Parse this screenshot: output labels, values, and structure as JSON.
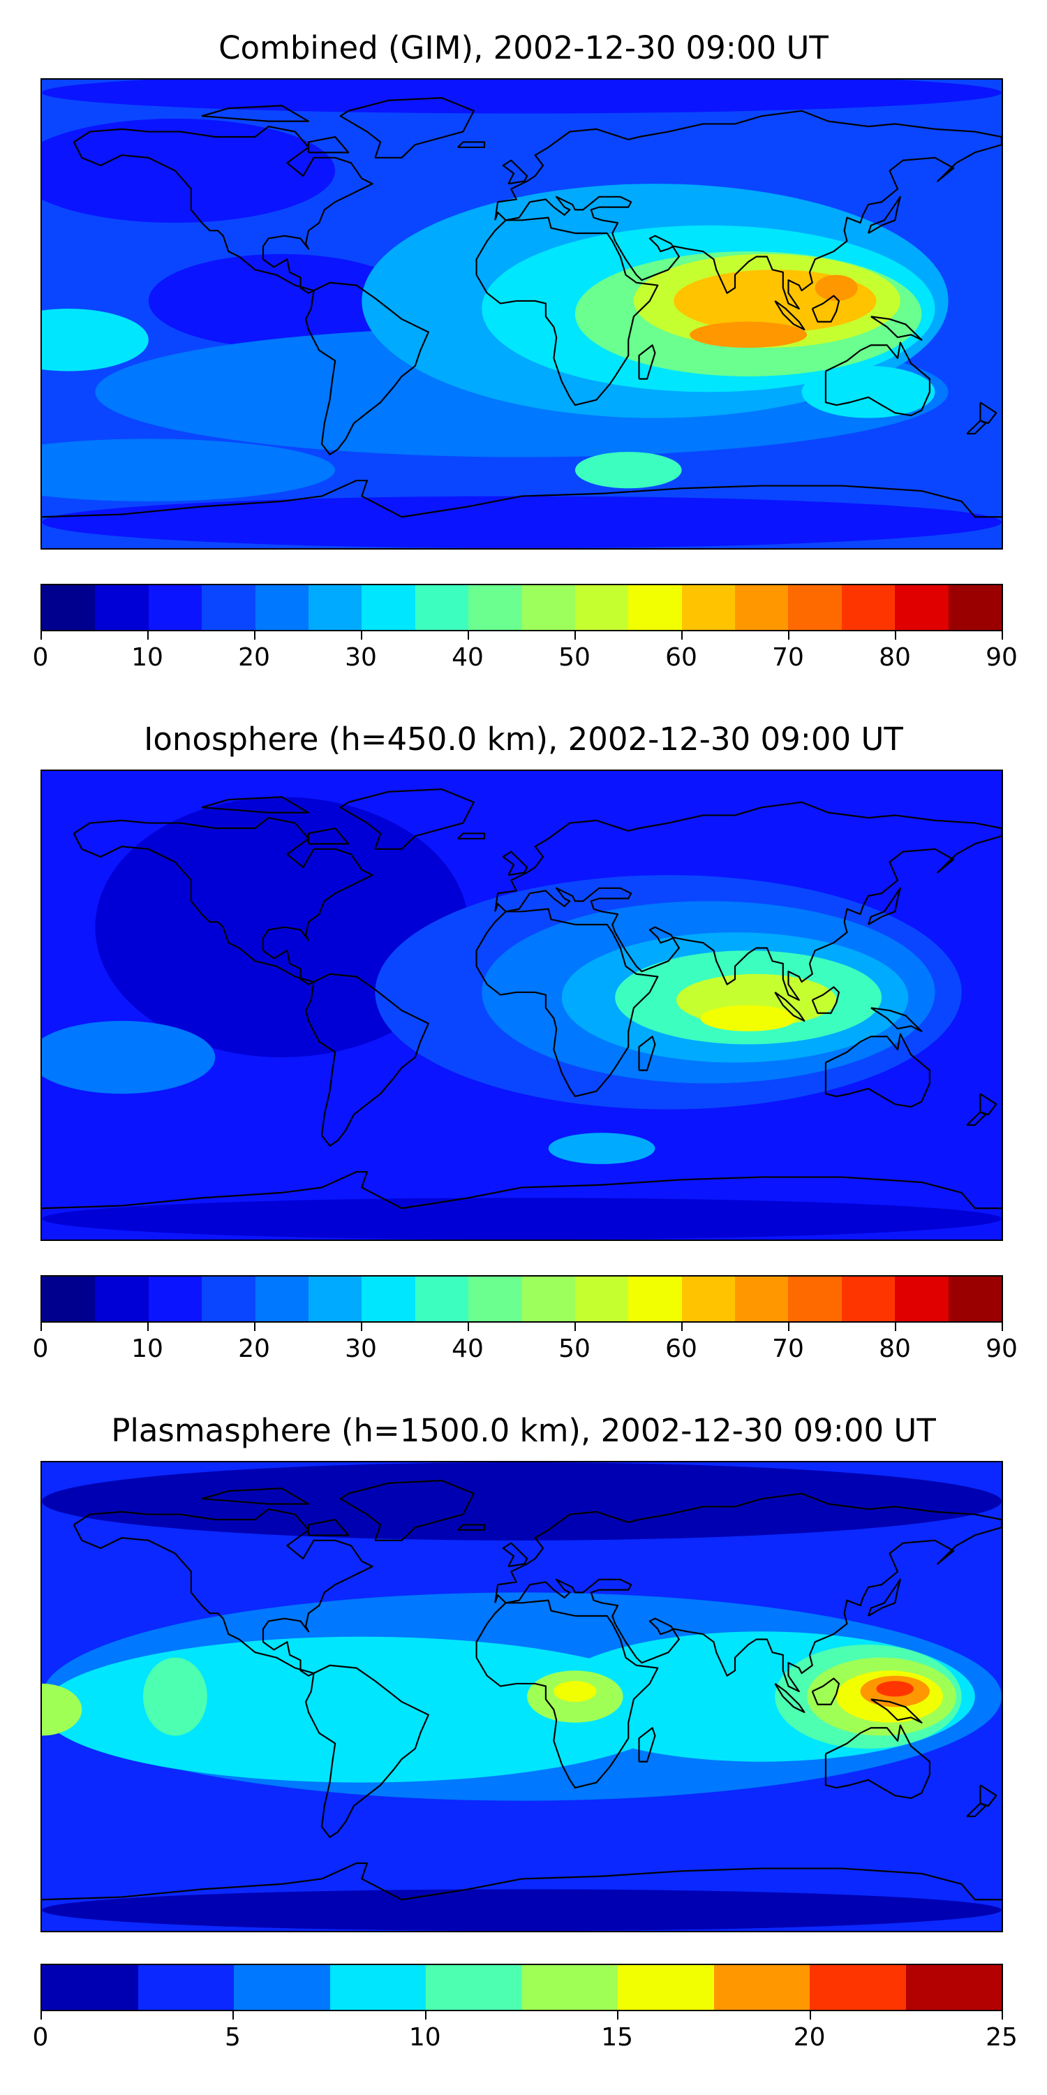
{
  "panels": [
    {
      "title": "Combined (GIM), 2002-12-30 09:00 UT",
      "colorbar": {
        "min": 0,
        "max": 90,
        "step": 5,
        "colors": [
          "#00008f",
          "#0000d6",
          "#0a14ff",
          "#0a46ff",
          "#0078ff",
          "#00aaff",
          "#00e6ff",
          "#3cffbf",
          "#6aff8e",
          "#9dff5b",
          "#c6ff30",
          "#f2ff00",
          "#ffc300",
          "#ff9700",
          "#ff6a00",
          "#ff3500",
          "#e00000",
          "#9b0000"
        ],
        "tick_labels": [
          "0",
          "10",
          "20",
          "30",
          "40",
          "50",
          "60",
          "70",
          "80",
          "90"
        ]
      },
      "field": {
        "base_color": "#0a46ff",
        "regions": [
          {
            "lon": -130,
            "lat": 55,
            "rx": 60,
            "ry": 20,
            "color": "#0a14ff"
          },
          {
            "lon": -90,
            "lat": 5,
            "rx": 50,
            "ry": 18,
            "color": "#0a14ff"
          },
          {
            "lon": 0,
            "lat": -30,
            "rx": 160,
            "ry": 25,
            "color": "#0078ff"
          },
          {
            "lon": 50,
            "lat": 5,
            "rx": 110,
            "ry": 45,
            "color": "#00aaff"
          },
          {
            "lon": 70,
            "lat": 2,
            "rx": 85,
            "ry": 32,
            "color": "#00e6ff"
          },
          {
            "lon": 85,
            "lat": 0,
            "rx": 65,
            "ry": 24,
            "color": "#6aff8e"
          },
          {
            "lon": 92,
            "lat": 5,
            "rx": 50,
            "ry": 18,
            "color": "#c6ff30"
          },
          {
            "lon": 95,
            "lat": 5,
            "rx": 38,
            "ry": 12,
            "color": "#ffc300"
          },
          {
            "lon": 85,
            "lat": -8,
            "rx": 22,
            "ry": 5,
            "color": "#ff9700"
          },
          {
            "lon": 118,
            "lat": 10,
            "rx": 8,
            "ry": 5,
            "color": "#ff9700"
          },
          {
            "lon": -170,
            "lat": -10,
            "rx": 30,
            "ry": 12,
            "color": "#00e6ff"
          },
          {
            "lon": 40,
            "lat": -60,
            "rx": 20,
            "ry": 7,
            "color": "#3cffbf"
          },
          {
            "lon": 130,
            "lat": -30,
            "rx": 25,
            "ry": 10,
            "color": "#00e6ff"
          },
          {
            "lon": -140,
            "lat": -60,
            "rx": 70,
            "ry": 12,
            "color": "#0078ff"
          },
          {
            "lon": 0,
            "lat": -80,
            "rx": 180,
            "ry": 10,
            "color": "#0a14ff"
          },
          {
            "lon": 0,
            "lat": 85,
            "rx": 180,
            "ry": 8,
            "color": "#0a14ff"
          }
        ]
      }
    },
    {
      "title": "Ionosphere  (h=450.0 km), 2002-12-30 09:00 UT",
      "colorbar": {
        "min": 0,
        "max": 90,
        "step": 5,
        "colors": [
          "#00008f",
          "#0000d6",
          "#0a14ff",
          "#0a46ff",
          "#0078ff",
          "#00aaff",
          "#00e6ff",
          "#3cffbf",
          "#6aff8e",
          "#9dff5b",
          "#c6ff30",
          "#f2ff00",
          "#ffc300",
          "#ff9700",
          "#ff6a00",
          "#ff3500",
          "#e00000",
          "#9b0000"
        ],
        "tick_labels": [
          "0",
          "10",
          "20",
          "30",
          "40",
          "50",
          "60",
          "70",
          "80",
          "90"
        ]
      },
      "field": {
        "base_color": "#0a14ff",
        "regions": [
          {
            "lon": -90,
            "lat": 30,
            "rx": 70,
            "ry": 50,
            "color": "#0000d6"
          },
          {
            "lon": 55,
            "lat": 5,
            "rx": 110,
            "ry": 45,
            "color": "#0a46ff"
          },
          {
            "lon": 70,
            "lat": 5,
            "rx": 85,
            "ry": 35,
            "color": "#0078ff"
          },
          {
            "lon": 80,
            "lat": 3,
            "rx": 65,
            "ry": 25,
            "color": "#00aaff"
          },
          {
            "lon": 85,
            "lat": 3,
            "rx": 50,
            "ry": 18,
            "color": "#3cffbf"
          },
          {
            "lon": 88,
            "lat": 2,
            "rx": 30,
            "ry": 10,
            "color": "#c6ff30"
          },
          {
            "lon": 85,
            "lat": -5,
            "rx": 18,
            "ry": 5,
            "color": "#f2ff00"
          },
          {
            "lon": -150,
            "lat": -20,
            "rx": 35,
            "ry": 14,
            "color": "#0078ff"
          },
          {
            "lon": 30,
            "lat": -55,
            "rx": 20,
            "ry": 6,
            "color": "#00aaff"
          },
          {
            "lon": 0,
            "lat": -82,
            "rx": 180,
            "ry": 8,
            "color": "#0000d6"
          }
        ]
      }
    },
    {
      "title": "Plasmasphere (h=1500.0 km), 2002-12-30 09:00 UT",
      "colorbar": {
        "min": 0,
        "max": 25,
        "step": 2.5,
        "colors": [
          "#0000b3",
          "#0a28ff",
          "#0078ff",
          "#00e6ff",
          "#4dffb0",
          "#a0ff55",
          "#f2ff00",
          "#ff9700",
          "#ff3500",
          "#b30000"
        ],
        "tick_labels": [
          "0",
          "5",
          "10",
          "15",
          "20",
          "25"
        ]
      },
      "field": {
        "base_color": "#0a28ff",
        "regions": [
          {
            "lon": 0,
            "lat": 75,
            "rx": 180,
            "ry": 15,
            "color": "#0000b3"
          },
          {
            "lon": 0,
            "lat": -82,
            "rx": 180,
            "ry": 8,
            "color": "#0000b3"
          },
          {
            "lon": 0,
            "lat": 0,
            "rx": 180,
            "ry": 40,
            "color": "#0078ff"
          },
          {
            "lon": -60,
            "lat": -5,
            "rx": 120,
            "ry": 28,
            "color": "#00e6ff"
          },
          {
            "lon": 90,
            "lat": 0,
            "rx": 80,
            "ry": 25,
            "color": "#00e6ff"
          },
          {
            "lon": -180,
            "lat": -5,
            "rx": 15,
            "ry": 10,
            "color": "#a0ff55"
          },
          {
            "lon": -130,
            "lat": 0,
            "rx": 12,
            "ry": 15,
            "color": "#4dffb0"
          },
          {
            "lon": 20,
            "lat": 0,
            "rx": 18,
            "ry": 10,
            "color": "#a0ff55"
          },
          {
            "lon": 20,
            "lat": 2,
            "rx": 8,
            "ry": 4,
            "color": "#f2ff00"
          },
          {
            "lon": 130,
            "lat": 0,
            "rx": 35,
            "ry": 20,
            "color": "#4dffb0"
          },
          {
            "lon": 135,
            "lat": 0,
            "rx": 28,
            "ry": 15,
            "color": "#a0ff55"
          },
          {
            "lon": 138,
            "lat": 0,
            "rx": 20,
            "ry": 10,
            "color": "#f2ff00"
          },
          {
            "lon": 140,
            "lat": 2,
            "rx": 13,
            "ry": 6,
            "color": "#ff9700"
          },
          {
            "lon": 140,
            "lat": 3,
            "rx": 7,
            "ry": 3,
            "color": "#ff3500"
          }
        ]
      }
    }
  ],
  "coastline_color": "#000000"
}
